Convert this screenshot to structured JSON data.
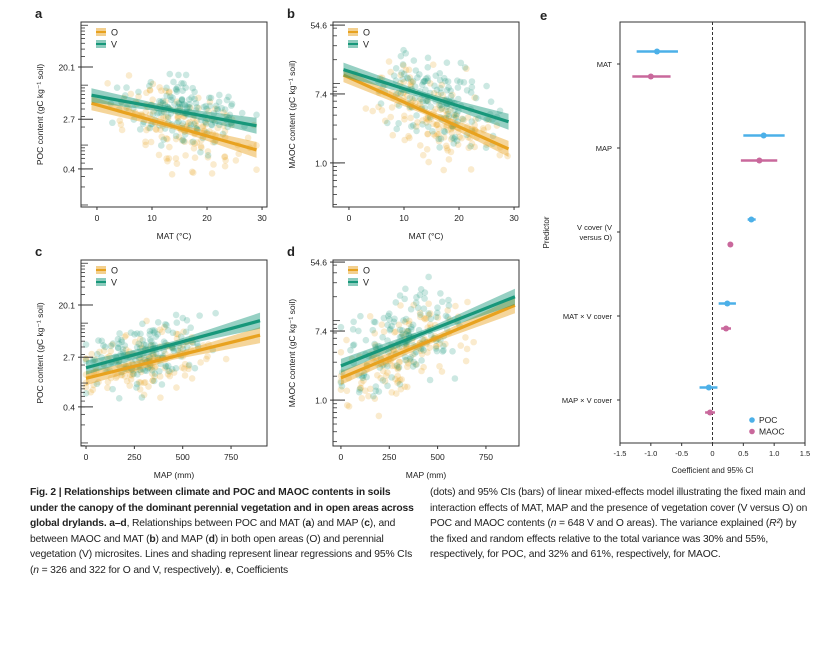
{
  "colors": {
    "O": "#e8a21f",
    "V": "#17977a",
    "POC": "#4cb0e8",
    "MAOC": "#c9689c"
  },
  "chart_data": [
    {
      "panel": "a",
      "type": "scatter",
      "xlabel": "MAT (°C)",
      "ylabel": "POC content (gC kg⁻¹ soil)",
      "y_scale": "log",
      "xticks": [
        "0",
        "10",
        "20",
        "30"
      ],
      "yticks": [
        "20.1",
        "2.7",
        "0.4"
      ],
      "xlim": [
        -2.9,
        30.9
      ],
      "legend": [
        "O",
        "V"
      ],
      "legend_position": "top-left",
      "regression": [
        {
          "name": "O",
          "x": [
            -1,
            29
          ],
          "y": [
            5.0,
            0.83
          ]
        },
        {
          "name": "V",
          "x": [
            -1,
            29
          ],
          "y": [
            6.8,
            2.1
          ]
        }
      ]
    },
    {
      "panel": "b",
      "type": "scatter",
      "xlabel": "MAT (°C)",
      "ylabel": "MAOC content (gC kg⁻¹ soil)",
      "y_scale": "log",
      "xticks": [
        "0",
        "10",
        "20",
        "30"
      ],
      "yticks": [
        "54.6",
        "7.4",
        "1.0"
      ],
      "xlim": [
        -2.9,
        30.9
      ],
      "legend": [
        "O",
        "V"
      ],
      "legend_position": "top-left",
      "regression": [
        {
          "name": "O",
          "x": [
            -1,
            29
          ],
          "y": [
            12.8,
            1.5
          ]
        },
        {
          "name": "V",
          "x": [
            -1,
            29
          ],
          "y": [
            15,
            3.3
          ]
        }
      ]
    },
    {
      "panel": "c",
      "type": "scatter",
      "xlabel": "MAP (mm)",
      "ylabel": "POC content (gC kg⁻¹ soil)",
      "y_scale": "log",
      "xticks": [
        "0",
        "250",
        "500",
        "750"
      ],
      "yticks": [
        "20.1",
        "2.7",
        "0.4"
      ],
      "xlim": [
        -26,
        936
      ],
      "legend": [
        "O",
        "V"
      ],
      "legend_position": "top-left",
      "regression": [
        {
          "name": "O",
          "x": [
            0,
            900
          ],
          "y": [
            1.2,
            6.3
          ]
        },
        {
          "name": "V",
          "x": [
            0,
            900
          ],
          "y": [
            1.8,
            11
          ]
        }
      ]
    },
    {
      "panel": "d",
      "type": "scatter",
      "xlabel": "MAP (mm)",
      "ylabel": "MAOC content (gC kg⁻¹ soil)",
      "y_scale": "log",
      "xticks": [
        "0",
        "250",
        "500",
        "750"
      ],
      "yticks": [
        "54.6",
        "7.4",
        "1.0"
      ],
      "xlim": [
        -41,
        921
      ],
      "legend": [
        "O",
        "V"
      ],
      "legend_position": "top-left",
      "regression": [
        {
          "name": "O",
          "x": [
            0,
            900
          ],
          "y": [
            1.9,
            15.6
          ]
        },
        {
          "name": "V",
          "x": [
            0,
            900
          ],
          "y": [
            2.7,
            20
          ]
        }
      ]
    },
    {
      "panel": "e",
      "type": "forest",
      "xlabel": "Coefficient and 95% CI",
      "ylabel": "Predictor",
      "xlim": [
        -1.5,
        1.5
      ],
      "xticks": [
        "-1.5",
        "-1.0",
        "-0.5",
        "0",
        "0.5",
        "1.0",
        "1.5"
      ],
      "legend": [
        "POC",
        "MAOC"
      ],
      "legend_position": "bottom-right",
      "predictors": [
        "MAT",
        "MAP",
        "V cover (V versus O)",
        "MAT × V cover",
        "MAP × V cover"
      ],
      "predictor_lines": [
        [
          "MAT"
        ],
        [
          "MAP"
        ],
        [
          "V cover (V",
          "versus O)"
        ],
        [
          "MAT × V cover"
        ],
        [
          "MAP × V cover"
        ]
      ],
      "series": [
        {
          "name": "POC",
          "estimate": [
            -0.9,
            0.83,
            0.63,
            0.24,
            -0.06
          ],
          "lower": [
            -1.23,
            0.5,
            0.57,
            0.1,
            -0.21
          ],
          "upper": [
            -0.56,
            1.17,
            0.7,
            0.38,
            0.08
          ]
        },
        {
          "name": "MAOC",
          "estimate": [
            -1.0,
            0.76,
            0.29,
            0.22,
            -0.04
          ],
          "lower": [
            -1.3,
            0.46,
            0.26,
            0.14,
            -0.12
          ],
          "upper": [
            -0.68,
            1.05,
            0.32,
            0.3,
            0.04
          ]
        }
      ]
    }
  ],
  "caption": {
    "left": [
      {
        "b": "Fig. 2 | Relationships between climate and POC and MAOC contents in soils under the canopy of the dominant perennial vegetation and in open areas across global drylands. a–d"
      },
      {
        "t": ", Relationships between POC and MAT ("
      },
      {
        "b": "a"
      },
      {
        "t": ") and MAP ("
      },
      {
        "b": "c"
      },
      {
        "t": "), and between MAOC and MAT ("
      },
      {
        "b": "b"
      },
      {
        "t": ") and MAP ("
      },
      {
        "b": "d"
      },
      {
        "t": ") in both open areas (O) and perennial vegetation (V) microsites. Lines and shading represent linear regressions and 95% CIs ("
      },
      {
        "i": "n"
      },
      {
        "t": " = 326 and 322 for O and V, respectively). "
      },
      {
        "b": "e"
      },
      {
        "t": ", Coefficients"
      }
    ],
    "right": [
      {
        "t": "(dots) and 95% CIs (bars) of linear mixed-effects model illustrating the fixed main and interaction effects of MAT, MAP and the presence of vegetation cover (V versus O) on POC and MAOC contents ("
      },
      {
        "i": "n"
      },
      {
        "t": " = 648 V and O areas). The variance explained ("
      },
      {
        "i": "R²"
      },
      {
        "t": ") by the fixed and random effects relative to the total variance was 30% and 55%, respectively, for POC, and 32% and 61%, respectively, for MAOC."
      }
    ]
  }
}
